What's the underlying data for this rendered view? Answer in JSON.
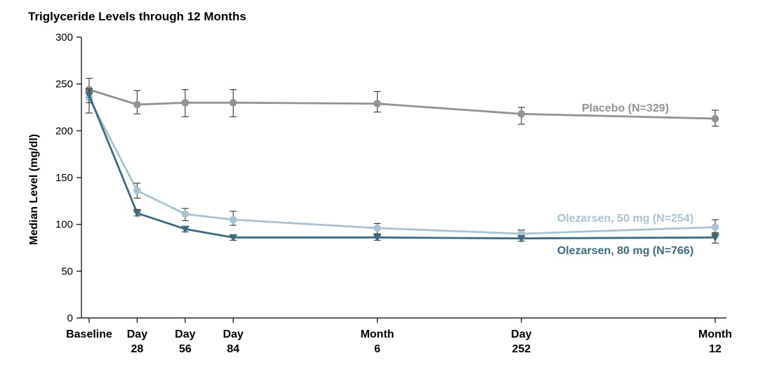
{
  "chart_data": {
    "type": "line",
    "title": "Triglyceride Levels through 12 Months",
    "xlabel": "",
    "ylabel": "Median Level (mg/dl)",
    "ylim": [
      0,
      300
    ],
    "yticks": [
      0,
      50,
      100,
      150,
      200,
      250,
      300
    ],
    "x_days": [
      0,
      28,
      56,
      84,
      168,
      252,
      365
    ],
    "categories": [
      {
        "line1": "Baseline",
        "line2": ""
      },
      {
        "line1": "Day",
        "line2": "28"
      },
      {
        "line1": "Day",
        "line2": "56"
      },
      {
        "line1": "Day",
        "line2": "84"
      },
      {
        "line1": "Month",
        "line2": "6"
      },
      {
        "line1": "Day",
        "line2": "252"
      },
      {
        "line1": "Month",
        "line2": "12"
      }
    ],
    "series": [
      {
        "name": "Placebo (N=329)",
        "color": "#939393",
        "marker": "circle",
        "values": [
          244,
          228,
          230,
          230,
          229,
          218,
          213
        ],
        "err_low": [
          234,
          218,
          215,
          215,
          220,
          207,
          205
        ],
        "err_high": [
          256,
          243,
          244,
          244,
          242,
          225,
          222
        ]
      },
      {
        "name": "Olezarsen, 50 mg (N=254)",
        "color": "#a9c3d2",
        "marker": "circle",
        "values": [
          235,
          136,
          111,
          105,
          96,
          90,
          97
        ],
        "err_low": [
          219,
          128,
          104,
          99,
          90,
          85,
          91
        ],
        "err_high": [
          245,
          144,
          117,
          114,
          101,
          94,
          105
        ]
      },
      {
        "name": "Olezarsen, 80 mg (N=766)",
        "color": "#3d6b80",
        "marker": "triangle",
        "values": [
          238,
          112,
          95,
          86,
          86,
          85,
          86
        ],
        "err_low": [
          230,
          109,
          92,
          83,
          83,
          82,
          80
        ],
        "err_high": [
          243,
          116,
          98,
          89,
          89,
          88,
          90
        ]
      }
    ]
  }
}
